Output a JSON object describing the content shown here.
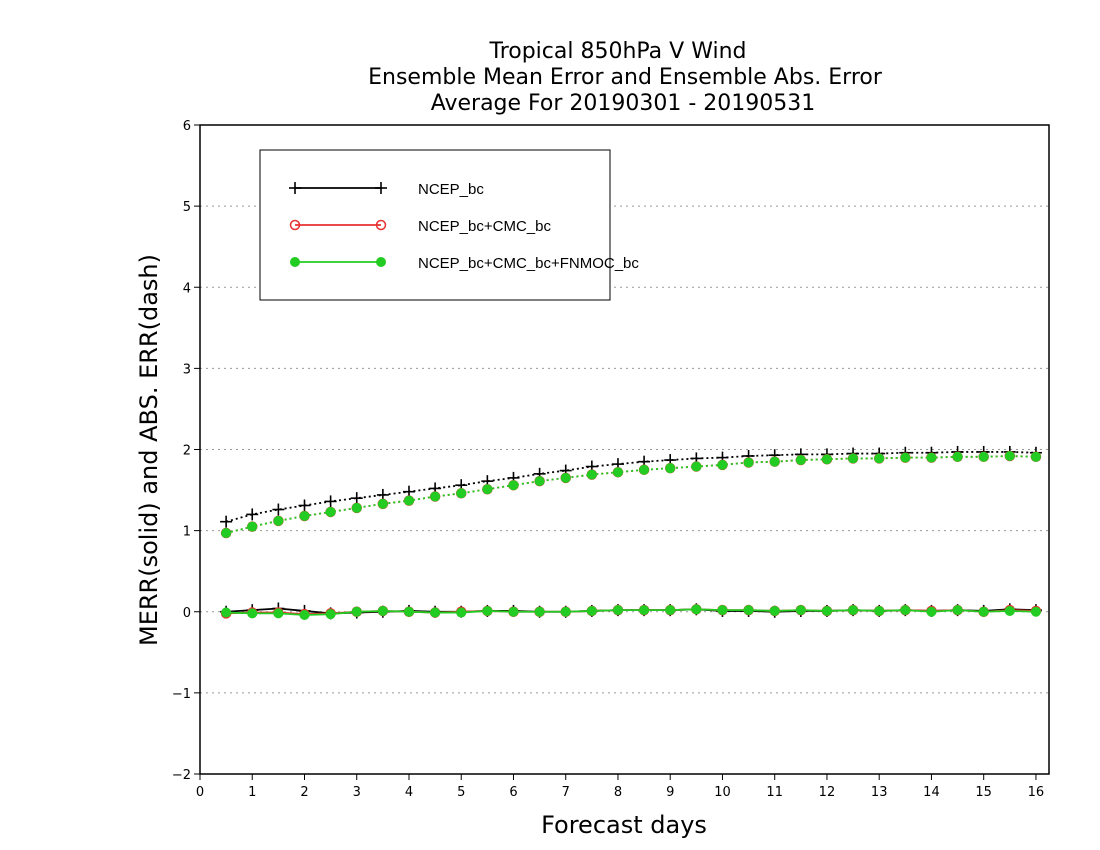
{
  "chart_data": {
    "type": "line",
    "title": [
      "Tropical 850hPa V Wind",
      "Ensemble Mean Error and Ensemble Abs. Error",
      "Average For 20190301 - 20190531"
    ],
    "xlabel": "Forecast days",
    "ylabel": "MERR(solid) and ABS. ERR(dash)",
    "xlim": [
      0,
      16.25
    ],
    "ylim": [
      -2,
      6
    ],
    "xticks": [
      "0",
      "1",
      "2",
      "3",
      "4",
      "5",
      "6",
      "7",
      "8",
      "9",
      "10",
      "11",
      "12",
      "13",
      "14",
      "15",
      "16"
    ],
    "yticks": [
      "−2",
      "−1",
      "0",
      "1",
      "2",
      "3",
      "4",
      "5",
      "6"
    ],
    "ytick_values": [
      -2,
      -1,
      0,
      1,
      2,
      3,
      4,
      5,
      6
    ],
    "grid": "horizontal dotted",
    "legend_position": "top-left",
    "x": [
      0.5,
      1,
      1.5,
      2,
      2.5,
      3,
      3.5,
      4,
      4.5,
      5,
      5.5,
      6,
      6.5,
      7,
      7.5,
      8,
      8.5,
      9,
      9.5,
      10,
      10.5,
      11,
      11.5,
      12,
      12.5,
      13,
      13.5,
      14,
      14.5,
      15,
      15.5,
      16
    ],
    "series": [
      {
        "name": "NCEP_bc",
        "color": "#000000",
        "marker": "plus",
        "merr": [
          0.0,
          0.02,
          0.04,
          0.01,
          -0.02,
          -0.01,
          0.0,
          0.01,
          0.0,
          0.0,
          0.01,
          0.01,
          0.0,
          0.0,
          0.01,
          0.02,
          0.02,
          0.02,
          0.03,
          0.01,
          0.01,
          0.0,
          0.01,
          0.01,
          0.02,
          0.01,
          0.02,
          0.01,
          0.02,
          0.01,
          0.03,
          0.02
        ],
        "abs_err": [
          1.11,
          1.2,
          1.26,
          1.31,
          1.36,
          1.4,
          1.44,
          1.48,
          1.52,
          1.56,
          1.61,
          1.65,
          1.7,
          1.74,
          1.79,
          1.82,
          1.85,
          1.87,
          1.89,
          1.9,
          1.92,
          1.93,
          1.94,
          1.94,
          1.95,
          1.95,
          1.96,
          1.96,
          1.97,
          1.97,
          1.97,
          1.96
        ]
      },
      {
        "name": "NCEP_bc+CMC_bc",
        "color": "#e83030",
        "marker": "open-circle",
        "merr": [
          -0.02,
          -0.01,
          -0.01,
          -0.03,
          -0.02,
          0.0,
          0.01,
          0.0,
          -0.01,
          0.0,
          0.01,
          0.0,
          0.0,
          0.0,
          0.01,
          0.02,
          0.02,
          0.02,
          0.03,
          0.02,
          0.02,
          0.01,
          0.02,
          0.01,
          0.02,
          0.01,
          0.02,
          0.01,
          0.02,
          0.0,
          0.02,
          0.01
        ],
        "abs_err": [
          0.97,
          1.05,
          1.12,
          1.18,
          1.23,
          1.28,
          1.33,
          1.37,
          1.42,
          1.46,
          1.51,
          1.56,
          1.61,
          1.65,
          1.69,
          1.72,
          1.75,
          1.77,
          1.79,
          1.81,
          1.84,
          1.85,
          1.87,
          1.88,
          1.89,
          1.89,
          1.9,
          1.9,
          1.91,
          1.91,
          1.92,
          1.91
        ]
      },
      {
        "name": "NCEP_bc+CMC_bc+FNMOC_bc",
        "color": "#22cc22",
        "marker": "filled-circle",
        "merr": [
          -0.01,
          -0.02,
          -0.02,
          -0.04,
          -0.03,
          0.0,
          0.01,
          0.0,
          -0.01,
          -0.01,
          0.01,
          0.0,
          0.0,
          0.0,
          0.01,
          0.02,
          0.02,
          0.02,
          0.03,
          0.02,
          0.02,
          0.01,
          0.02,
          0.01,
          0.02,
          0.01,
          0.02,
          0.0,
          0.02,
          0.0,
          0.01,
          0.0
        ],
        "abs_err": [
          0.97,
          1.05,
          1.12,
          1.18,
          1.23,
          1.28,
          1.33,
          1.37,
          1.42,
          1.46,
          1.51,
          1.56,
          1.61,
          1.65,
          1.69,
          1.72,
          1.75,
          1.77,
          1.79,
          1.81,
          1.84,
          1.85,
          1.87,
          1.88,
          1.89,
          1.89,
          1.9,
          1.9,
          1.91,
          1.91,
          1.92,
          1.91
        ]
      }
    ]
  }
}
